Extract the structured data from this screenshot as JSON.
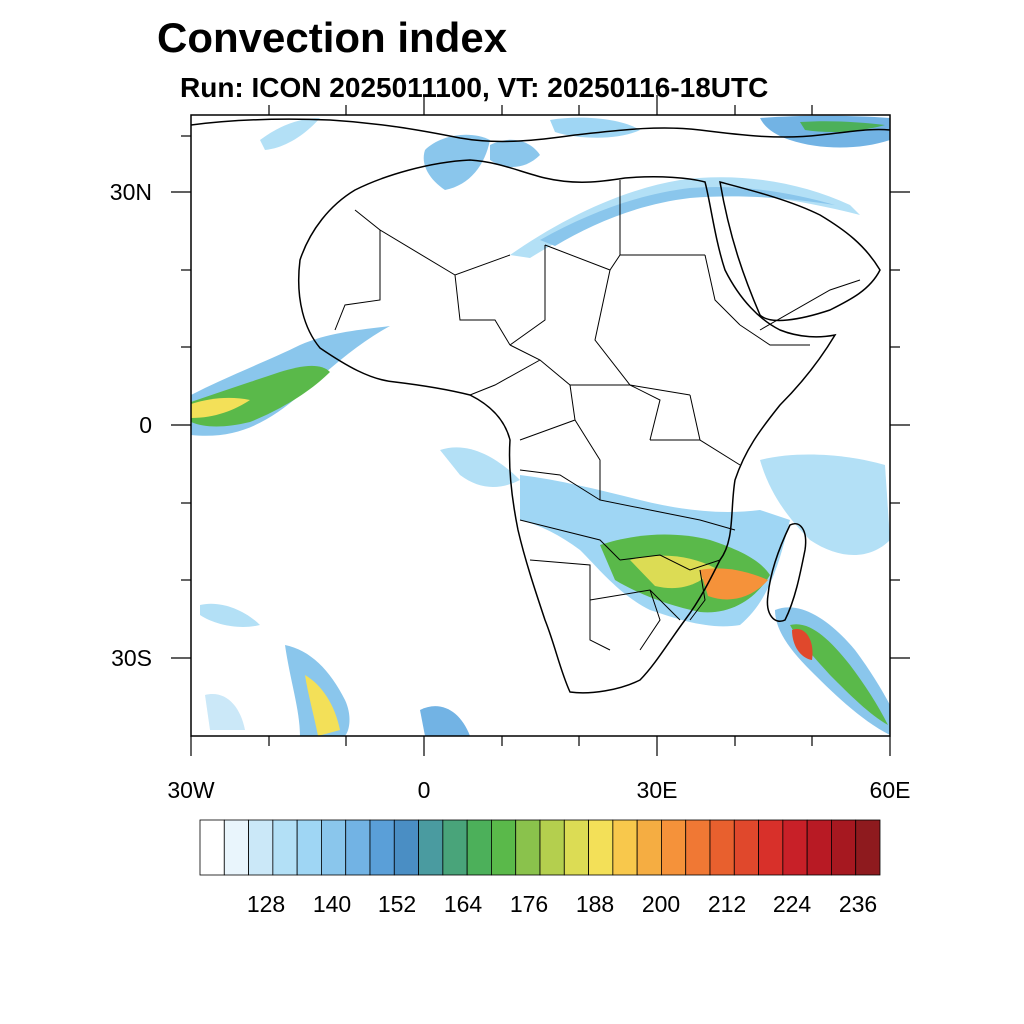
{
  "title": "Convection index",
  "subtitle": "Run: ICON 2025011100,  VT: 20250116-18UTC",
  "map": {
    "x_ticks": [
      "30W",
      "0",
      "30E",
      "60E"
    ],
    "y_ticks": [
      "30N",
      "0",
      "30S"
    ]
  },
  "colorbar": {
    "labels": [
      "128",
      "140",
      "152",
      "164",
      "176",
      "188",
      "200",
      "212",
      "224",
      "236"
    ],
    "colors": [
      "#ffffff",
      "#e9f5fc",
      "#cbe8f8",
      "#b3e0f6",
      "#9fd6f4",
      "#8ac6ec",
      "#72b3e4",
      "#5a9fd8",
      "#4a8ec4",
      "#4a9ba0",
      "#49a47a",
      "#4cb05a",
      "#5ab94a",
      "#8ac24c",
      "#b4cf4e",
      "#dcdc54",
      "#f3e058",
      "#f8c84c",
      "#f5ad42",
      "#f5923a",
      "#f07834",
      "#e8602e",
      "#e0482c",
      "#d8302a",
      "#c82028",
      "#b81a24",
      "#a61820",
      "#8e1a1e"
    ]
  }
}
